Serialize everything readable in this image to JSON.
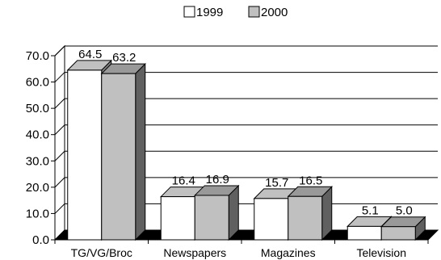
{
  "chart_data": {
    "type": "bar",
    "categories": [
      "TG/VG/Broc",
      "Newspapers",
      "Magazines",
      "Television"
    ],
    "series": [
      {
        "name": "1999",
        "values": [
          64.5,
          16.4,
          15.7,
          5.1
        ]
      },
      {
        "name": "2000",
        "values": [
          63.2,
          16.9,
          16.5,
          5.0
        ]
      }
    ],
    "data_labels": [
      [
        "64.5",
        "16.4",
        "15.7",
        "5.1"
      ],
      [
        "63.2",
        "16.9",
        "16.5",
        "5.0"
      ]
    ],
    "ylim": [
      0,
      70
    ],
    "yticks": [
      "0.0",
      "10.0",
      "20.0",
      "30.0",
      "40.0",
      "50.0",
      "60.0",
      "70.0"
    ],
    "grid": true,
    "three_d": true,
    "legend_position": "top",
    "colors": {
      "series_fills": [
        "#ffffff",
        "#c0c0c0"
      ],
      "series_tops": [
        "#c0c0c0",
        "#999999"
      ],
      "series_sides": [
        "#808080",
        "#606060"
      ],
      "floor": "#000000",
      "gridline": "#000000"
    }
  }
}
